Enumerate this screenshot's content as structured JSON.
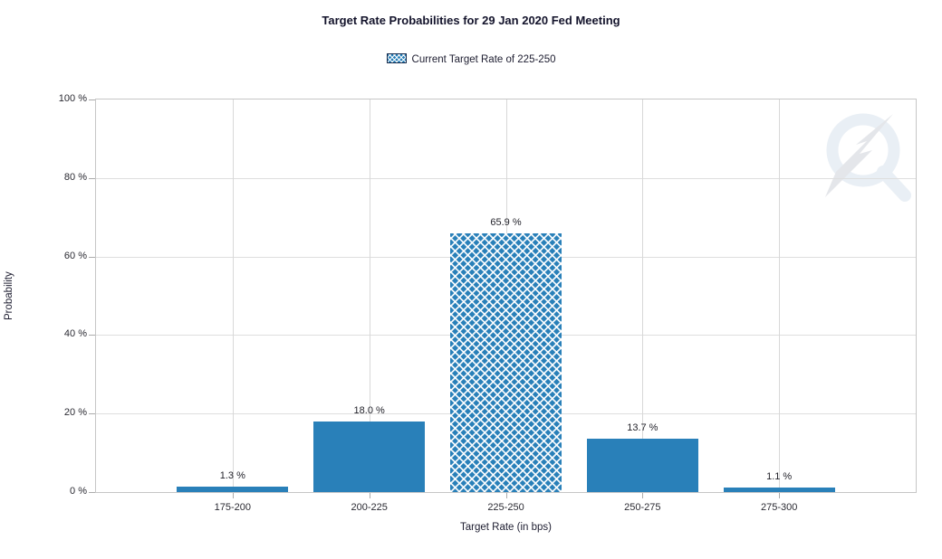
{
  "header": {
    "title": "Target Rate Probabilities for 29 Jan 2020 Fed Meeting"
  },
  "legend": {
    "label": "Current Target Rate of 225-250",
    "swatch_style": "blue-crosshatch"
  },
  "watermark": {
    "name": "quantower-logo",
    "ring_color": "#e9eff5",
    "bolt_color": "#e4e6ea"
  },
  "chart_data": {
    "type": "bar",
    "title": "Target Rate Probabilities for 29 Jan 2020 Fed Meeting",
    "categories": [
      "175-200",
      "200-225",
      "225-250",
      "250-275",
      "275-300"
    ],
    "values": [
      1.3,
      18.0,
      65.9,
      13.7,
      1.1
    ],
    "bar_labels": [
      "1.3 %",
      "18.0 %",
      "65.9 %",
      "13.7 %",
      "1.1 %"
    ],
    "highlight_index": 2,
    "highlight_style": "crosshatch",
    "legend_entries": [
      "Current Target Rate of 225-250"
    ],
    "legend_position": "top-center",
    "xlabel": "Target Rate (in bps)",
    "ylabel": "Probability",
    "ylim": [
      0,
      100
    ],
    "yticks": [
      0,
      20,
      40,
      60,
      80,
      100
    ],
    "ytick_labels": [
      "0 %",
      "20 %",
      "40 %",
      "60 %",
      "80 %",
      "100 %"
    ],
    "grid": true,
    "colors": {
      "bar": "#2980b9",
      "hatch_line": "#ffffff",
      "gridline": "#dedede",
      "axis_border": "#c6c6c6",
      "tick": "#ababab",
      "text": "#2a2a32",
      "title_text": "#13132b"
    }
  }
}
